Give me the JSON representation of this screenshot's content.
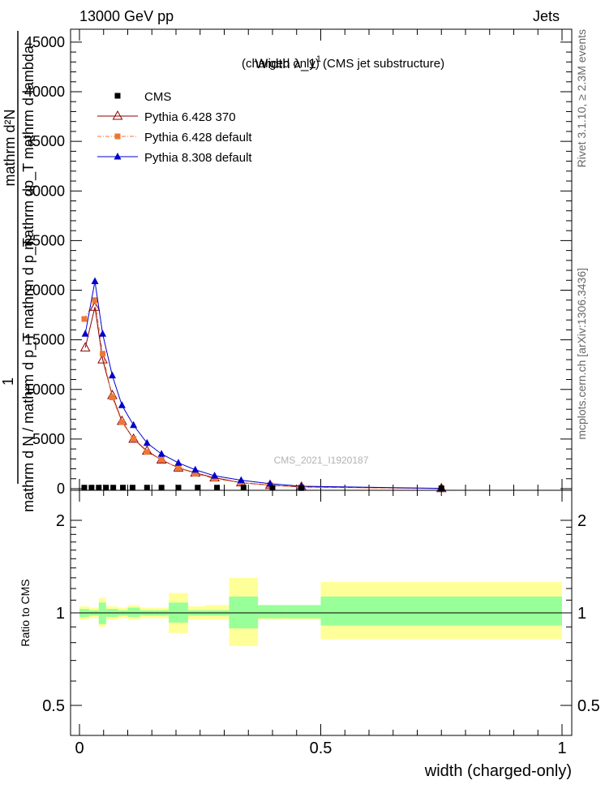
{
  "header": {
    "energy": "13000 GeV pp",
    "process": "Jets",
    "side_rivet": "Rivet 3.1.10, ≥ 2.3M events",
    "side_mcplots": "mcplots.cern.ch [arXiv:1306.3436]"
  },
  "main_plot": {
    "title_main": "Width λ_1",
    "title_sup": "1",
    "title_rest": "(charged only) (CMS jet substructure)",
    "ylabel_one": "1",
    "ylabel_top_a": "mathrm d²N",
    "ylabel_top_b": "mathrm dp_T mathrm d lambda",
    "ylabel_bottom": "mathrm d N / mathrm d p_T mathrm d p_T",
    "watermark": "CMS_2021_I1920187",
    "yticks": [
      {
        "v": 0,
        "label": "0"
      },
      {
        "v": 5000,
        "label": "5000"
      },
      {
        "v": 10000,
        "label": "10000"
      },
      {
        "v": 15000,
        "label": "15000"
      },
      {
        "v": 20000,
        "label": "20000"
      },
      {
        "v": 25000,
        "label": "25000"
      },
      {
        "v": 30000,
        "label": "30000"
      },
      {
        "v": 35000,
        "label": "35000"
      },
      {
        "v": 40000,
        "label": "40000"
      },
      {
        "v": 45000,
        "label": "45000"
      }
    ]
  },
  "ratio_plot": {
    "ylabel": "Ratio to CMS",
    "yticks": [
      {
        "v": 0.5,
        "label": "0.5"
      },
      {
        "v": 1,
        "label": "1"
      },
      {
        "v": 2,
        "label": "2"
      }
    ],
    "xlabel": "width (charged-only)",
    "xticks": [
      {
        "v": 0,
        "label": "0"
      },
      {
        "v": 0.5,
        "label": "0.5"
      },
      {
        "v": 1,
        "label": "1"
      }
    ]
  },
  "chart_data": {
    "type": "line",
    "xlim": [
      0,
      1
    ],
    "ylim": [
      0,
      47000
    ],
    "ratio_ylim": [
      0.4,
      2.4
    ],
    "ratio_scale": "log",
    "legend_position": "top-left",
    "series": [
      {
        "name": "CMS",
        "color": "#000000",
        "marker": "square",
        "x": [
          0.01,
          0.025,
          0.04,
          0.055,
          0.07,
          0.09,
          0.11,
          0.14,
          0.17,
          0.205,
          0.245,
          0.285,
          0.34,
          0.4,
          0.46,
          0.75
        ],
        "y": [
          100,
          100,
          100,
          100,
          100,
          100,
          100,
          100,
          100,
          100,
          100,
          100,
          100,
          80,
          60,
          30
        ]
      },
      {
        "name": "Pythia 6.428 370",
        "color": "#8b0000",
        "marker": "triangle-open",
        "x": [
          0.012,
          0.032,
          0.048,
          0.068,
          0.088,
          0.112,
          0.14,
          0.17,
          0.205,
          0.24,
          0.28,
          0.335,
          0.395,
          0.46,
          0.75
        ],
        "y": [
          14200,
          18300,
          13000,
          9400,
          6800,
          5000,
          3800,
          2900,
          2100,
          1600,
          1100,
          600,
          350,
          170,
          20
        ]
      },
      {
        "name": "Pythia 6.428 default",
        "color": "#ee7733",
        "marker": "square",
        "x": [
          0.01,
          0.032,
          0.048,
          0.068,
          0.088,
          0.112,
          0.14,
          0.17,
          0.205,
          0.24,
          0.28,
          0.335,
          0.395,
          0.46,
          0.75
        ],
        "y": [
          17100,
          19000,
          13600,
          9200,
          6700,
          5000,
          3700,
          2900,
          2100,
          1500,
          1000,
          600,
          350,
          170,
          20
        ]
      },
      {
        "name": "Pythia 8.308 default",
        "color": "#0000cc",
        "marker": "triangle",
        "x": [
          0.012,
          0.032,
          0.048,
          0.068,
          0.088,
          0.112,
          0.14,
          0.17,
          0.205,
          0.24,
          0.28,
          0.335,
          0.395,
          0.46,
          0.75
        ],
        "y": [
          15600,
          20900,
          15600,
          11400,
          8400,
          6400,
          4600,
          3500,
          2600,
          1900,
          1300,
          850,
          500,
          250,
          30
        ]
      }
    ],
    "ratio_bands": {
      "edges": [
        0,
        0.02,
        0.04,
        0.055,
        0.08,
        0.1,
        0.125,
        0.155,
        0.185,
        0.225,
        0.26,
        0.31,
        0.37,
        0.43,
        0.5,
        1.0
      ],
      "stat": [
        [
          0.97,
          1.03
        ],
        [
          0.98,
          1.02
        ],
        [
          0.92,
          1.08
        ],
        [
          0.97,
          1.03
        ],
        [
          0.98,
          1.02
        ],
        [
          0.97,
          1.04
        ],
        [
          0.98,
          1.02
        ],
        [
          0.98,
          1.02
        ],
        [
          0.93,
          1.08
        ],
        [
          0.98,
          1.02
        ],
        [
          0.98,
          1.02
        ],
        [
          0.89,
          1.13
        ],
        [
          0.96,
          1.06
        ],
        [
          0.96,
          1.06
        ],
        [
          0.91,
          1.13
        ],
        [
          0.92,
          1.1
        ]
      ],
      "syst": [
        [
          0.95,
          1.05
        ],
        [
          0.96,
          1.04
        ],
        [
          0.9,
          1.12
        ],
        [
          0.95,
          1.05
        ],
        [
          0.96,
          1.04
        ],
        [
          0.95,
          1.06
        ],
        [
          0.96,
          1.04
        ],
        [
          0.96,
          1.04
        ],
        [
          0.86,
          1.16
        ],
        [
          0.95,
          1.05
        ],
        [
          0.95,
          1.06
        ],
        [
          0.78,
          1.3
        ],
        [
          0.95,
          1.06
        ],
        [
          0.95,
          1.06
        ],
        [
          0.82,
          1.26
        ],
        [
          0.85,
          1.22
        ]
      ]
    }
  }
}
